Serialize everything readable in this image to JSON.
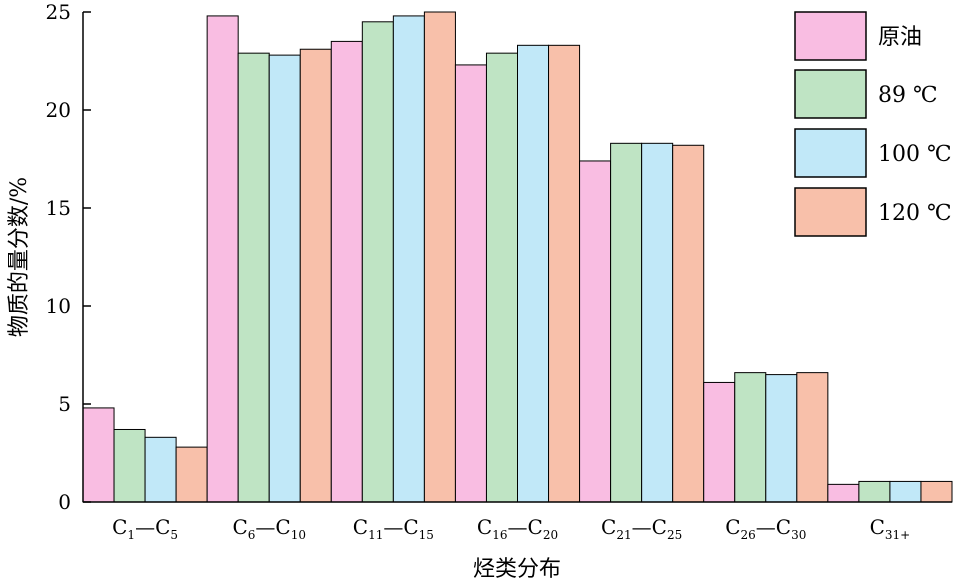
{
  "chart_data": {
    "type": "bar",
    "xlabel": "烃类分布",
    "ylabel": "物质的量分数/%",
    "ylim": [
      0,
      25
    ],
    "yticks": [
      0,
      5,
      10,
      15,
      20,
      25
    ],
    "categories": [
      {
        "main": "C",
        "a": "1",
        "sep": "—",
        "b": "5"
      },
      {
        "main": "C",
        "a": "6",
        "sep": "—",
        "b": "10"
      },
      {
        "main": "C",
        "a": "11",
        "sep": "—",
        "b": "15"
      },
      {
        "main": "C",
        "a": "16",
        "sep": "—",
        "b": "20"
      },
      {
        "main": "C",
        "a": "21",
        "sep": "—",
        "b": "25"
      },
      {
        "main": "C",
        "a": "26",
        "sep": "—",
        "b": "30"
      },
      {
        "main": "C",
        "a": "31+",
        "sep": "",
        "b": ""
      }
    ],
    "series": [
      {
        "name": "原油",
        "color": "#f9bde2",
        "values": [
          4.8,
          24.8,
          23.5,
          22.3,
          17.4,
          6.1,
          0.9
        ]
      },
      {
        "name": "89 ℃",
        "color": "#bfe4c4",
        "values": [
          3.7,
          22.9,
          24.5,
          22.9,
          18.3,
          6.6,
          1.05
        ]
      },
      {
        "name": "100 ℃",
        "color": "#c1e8f8",
        "values": [
          3.3,
          22.8,
          24.8,
          23.3,
          18.3,
          6.5,
          1.05
        ]
      },
      {
        "name": "120 ℃",
        "color": "#f8c0aa",
        "values": [
          2.8,
          23.1,
          25.0,
          23.3,
          18.2,
          6.6,
          1.05
        ]
      }
    ],
    "grid": false,
    "legend_position": "top-right"
  }
}
